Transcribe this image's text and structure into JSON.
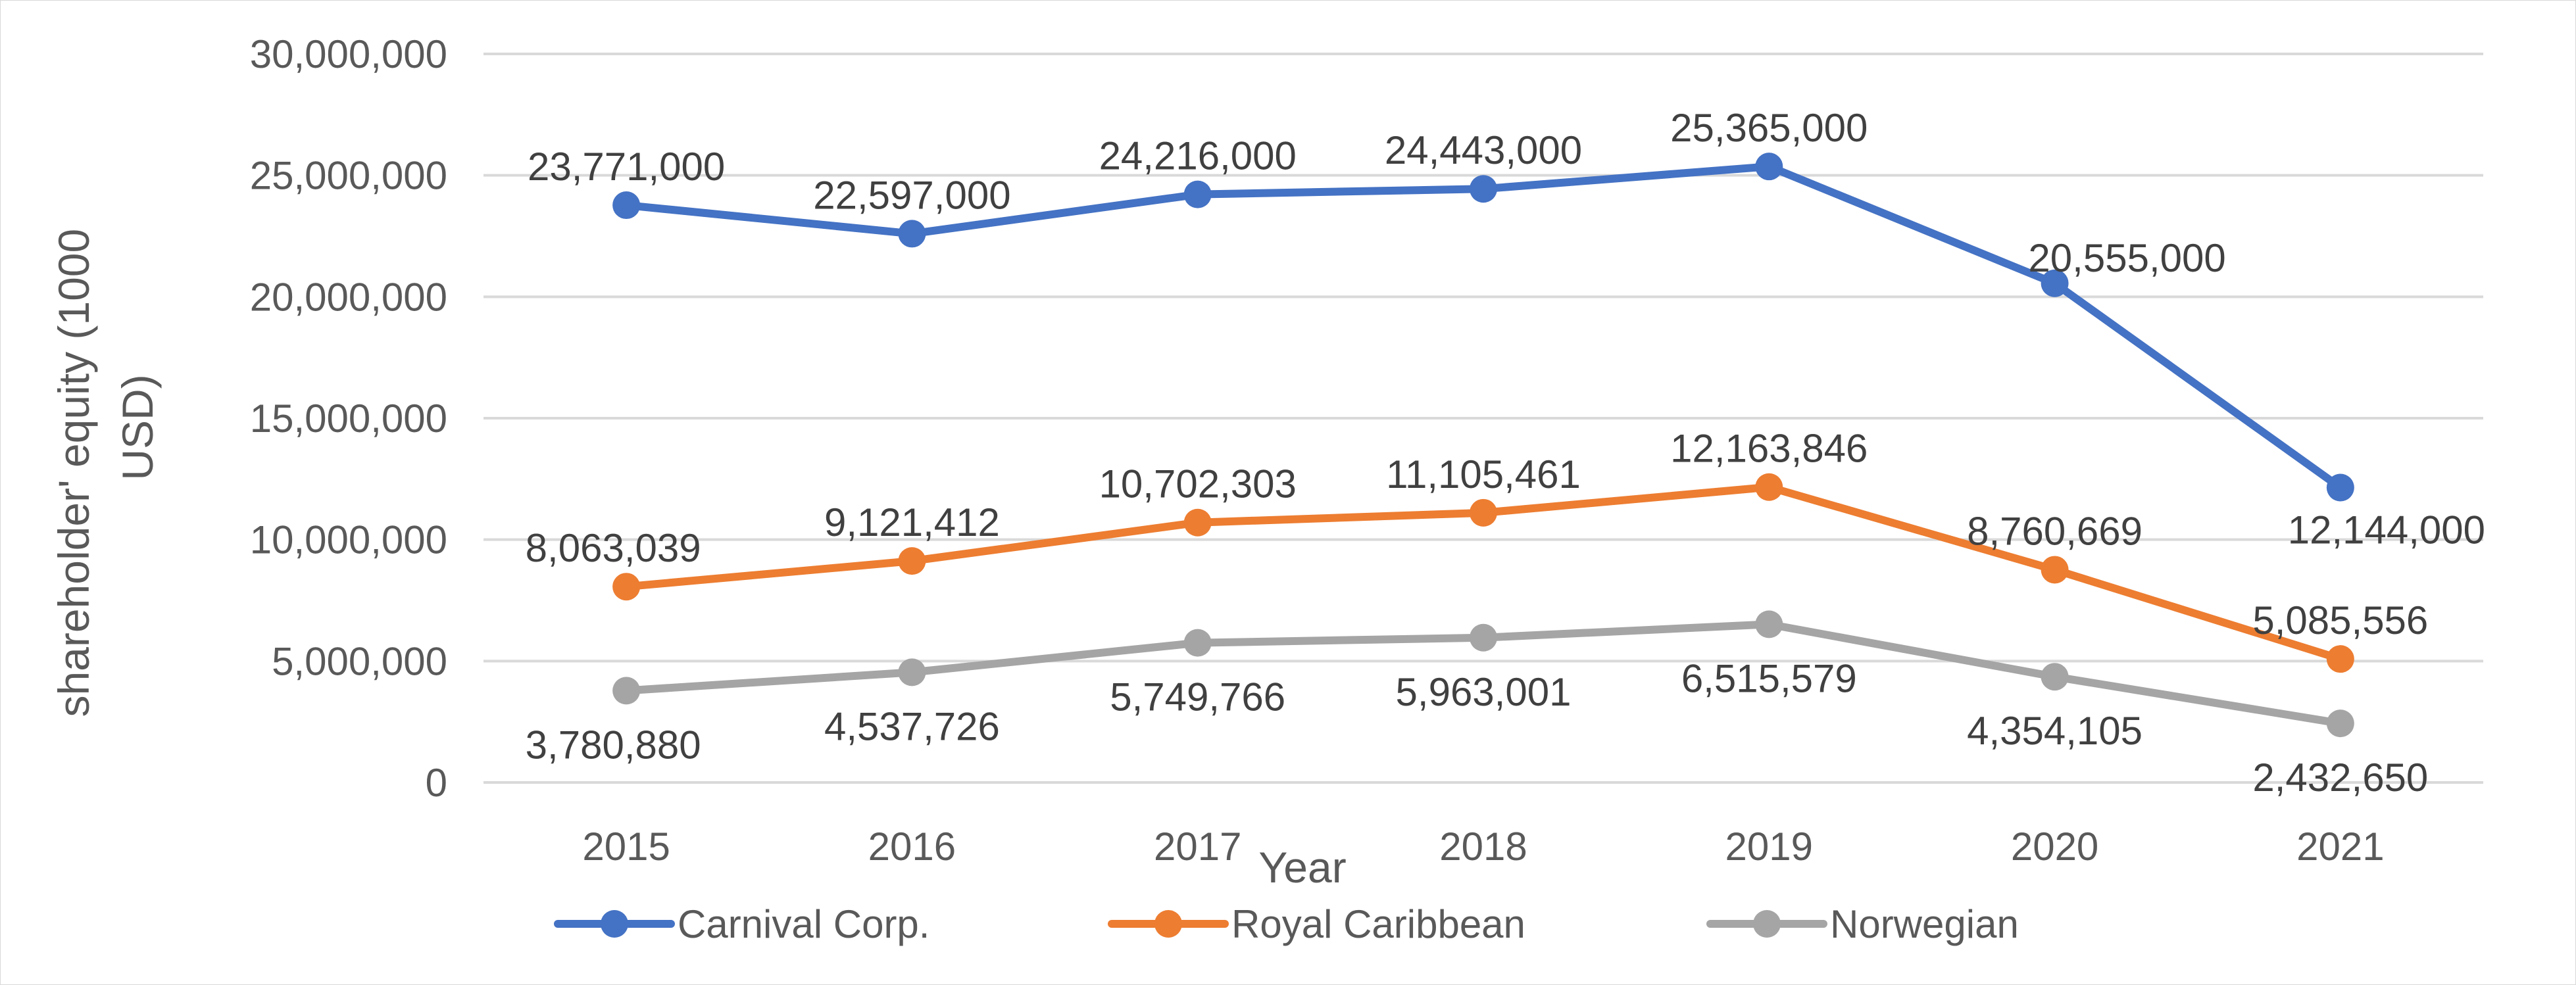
{
  "chart_data": {
    "type": "line",
    "title": "",
    "xlabel": "Year",
    "ylabel_lines": [
      "shareholder' equity   (1000",
      "USD)"
    ],
    "categories": [
      "2015",
      "2016",
      "2017",
      "2018",
      "2019",
      "2020",
      "2021"
    ],
    "ylim": [
      0,
      30000000
    ],
    "yticks": [
      0,
      5000000,
      10000000,
      15000000,
      20000000,
      25000000,
      30000000
    ],
    "ytick_labels": [
      "0",
      "5,000,000",
      "10,000,000",
      "15,000,000",
      "20,000,000",
      "25,000,000",
      "30,000,000"
    ],
    "grid": true,
    "legend_position": "bottom",
    "series": [
      {
        "name": "Carnival Corp.",
        "color": "#4472c4",
        "values": [
          23771000,
          22597000,
          24216000,
          24443000,
          25365000,
          20555000,
          12144000
        ],
        "labels": [
          "23,771,000",
          "22,597,000",
          "24,216,000",
          "24,443,000",
          "25,365,000",
          "20,555,000",
          "12,144,000"
        ]
      },
      {
        "name": "Royal Caribbean",
        "color": "#ed7d31",
        "values": [
          8063039,
          9121412,
          10702303,
          11105461,
          12163846,
          8760669,
          5085556
        ],
        "labels": [
          "8,063,039",
          "9,121,412",
          "10,702,303",
          "11,105,461",
          "12,163,846",
          "8,760,669",
          "5,085,556"
        ]
      },
      {
        "name": "Norwegian",
        "color": "#a5a5a5",
        "values": [
          3780880,
          4537726,
          5749766,
          5963001,
          6515579,
          4354105,
          2432650
        ],
        "labels": [
          "3,780,880",
          "4,537,726",
          "5,749,766",
          "5,963,001",
          "6,515,579",
          "4,354,105",
          "2,432,650"
        ]
      }
    ]
  }
}
